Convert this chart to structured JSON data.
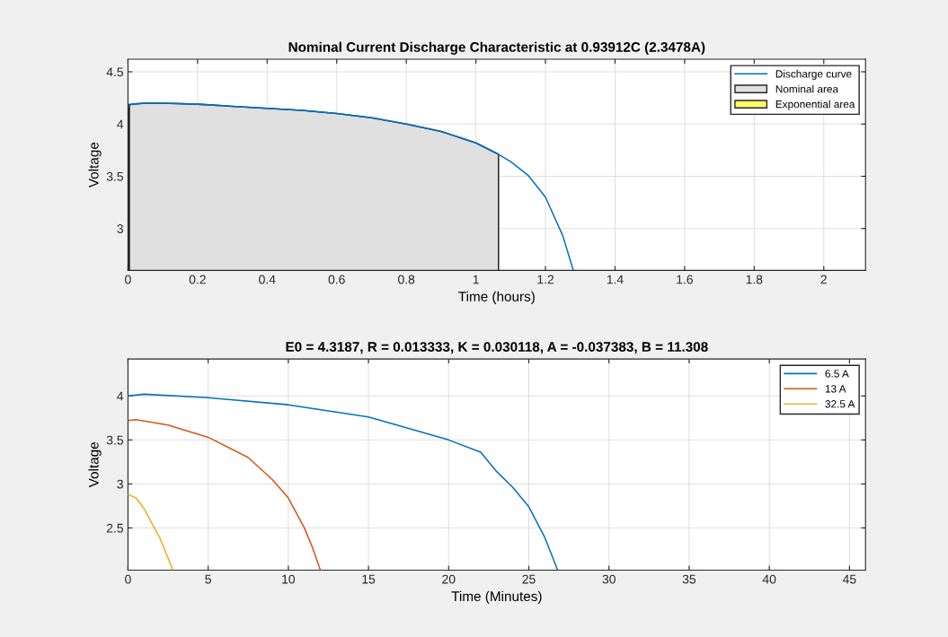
{
  "chart_data": [
    {
      "type": "line",
      "title": "Nominal Current Discharge Characteristic at 0.93912C (2.3478A)",
      "xlabel": "Time (hours)",
      "ylabel": "Voltage",
      "xlim": [
        0,
        2.12
      ],
      "ylim": [
        2.6,
        4.62
      ],
      "xticks": [
        0,
        0.2,
        0.4,
        0.6,
        0.8,
        1,
        1.2,
        1.4,
        1.6,
        1.8,
        2
      ],
      "yticks": [
        3,
        3.5,
        4,
        4.5
      ],
      "grid": true,
      "legend": "top right",
      "series": [
        {
          "name": "Discharge curve",
          "type": "line",
          "color": "#0072bd",
          "x": [
            0,
            0.01,
            0.05,
            0.1,
            0.2,
            0.3,
            0.4,
            0.5,
            0.6,
            0.7,
            0.8,
            0.9,
            1.0,
            1.065,
            1.1,
            1.15,
            1.2,
            1.25,
            1.28
          ],
          "values": [
            4.17,
            4.19,
            4.2,
            4.2,
            4.19,
            4.17,
            4.15,
            4.13,
            4.1,
            4.06,
            4.0,
            3.93,
            3.82,
            3.71,
            3.64,
            3.51,
            3.3,
            2.93,
            2.6
          ]
        },
        {
          "name": "Nominal area",
          "type": "area",
          "color": "#e0e0e0",
          "x": [
            0,
            0.01,
            0.05,
            0.1,
            0.2,
            0.3,
            0.4,
            0.5,
            0.6,
            0.7,
            0.8,
            0.9,
            1.0,
            1.065
          ],
          "values": [
            4.17,
            4.19,
            4.2,
            4.2,
            4.19,
            4.17,
            4.15,
            4.13,
            4.1,
            4.06,
            4.0,
            3.93,
            3.82,
            3.71
          ]
        },
        {
          "name": "Exponential area",
          "type": "area",
          "color": "#ffff66",
          "x": [
            0,
            0.004
          ],
          "values": [
            4.17,
            4.19
          ]
        }
      ]
    },
    {
      "type": "line",
      "title": "E0 = 4.3187, R = 0.013333, K = 0.030118, A = -0.037383, B = 11.308",
      "xlabel": "Time (Minutes)",
      "ylabel": "Voltage",
      "xlim": [
        0,
        46
      ],
      "ylim": [
        2.02,
        4.42
      ],
      "xticks": [
        0,
        5,
        10,
        15,
        20,
        25,
        30,
        35,
        40,
        45
      ],
      "yticks": [
        2.5,
        3,
        3.5,
        4
      ],
      "grid": true,
      "legend": "top right",
      "series": [
        {
          "name": "6.5 A",
          "color": "#0072bd",
          "x": [
            0,
            1,
            5,
            10,
            15,
            20,
            22,
            23,
            24,
            25,
            26,
            26.8
          ],
          "values": [
            4.0,
            4.02,
            3.98,
            3.9,
            3.76,
            3.5,
            3.36,
            3.14,
            2.96,
            2.74,
            2.39,
            2.02
          ]
        },
        {
          "name": "13 A",
          "color": "#d95319",
          "x": [
            0,
            0.5,
            2.5,
            5,
            7.5,
            9,
            10,
            11,
            11.5,
            12
          ],
          "values": [
            3.72,
            3.73,
            3.67,
            3.53,
            3.3,
            3.05,
            2.84,
            2.5,
            2.28,
            2.02
          ]
        },
        {
          "name": "32.5 A",
          "color": "#edb120",
          "x": [
            0,
            0.5,
            1,
            2,
            2.8
          ],
          "values": [
            2.88,
            2.84,
            2.72,
            2.38,
            2.02
          ]
        }
      ]
    }
  ]
}
